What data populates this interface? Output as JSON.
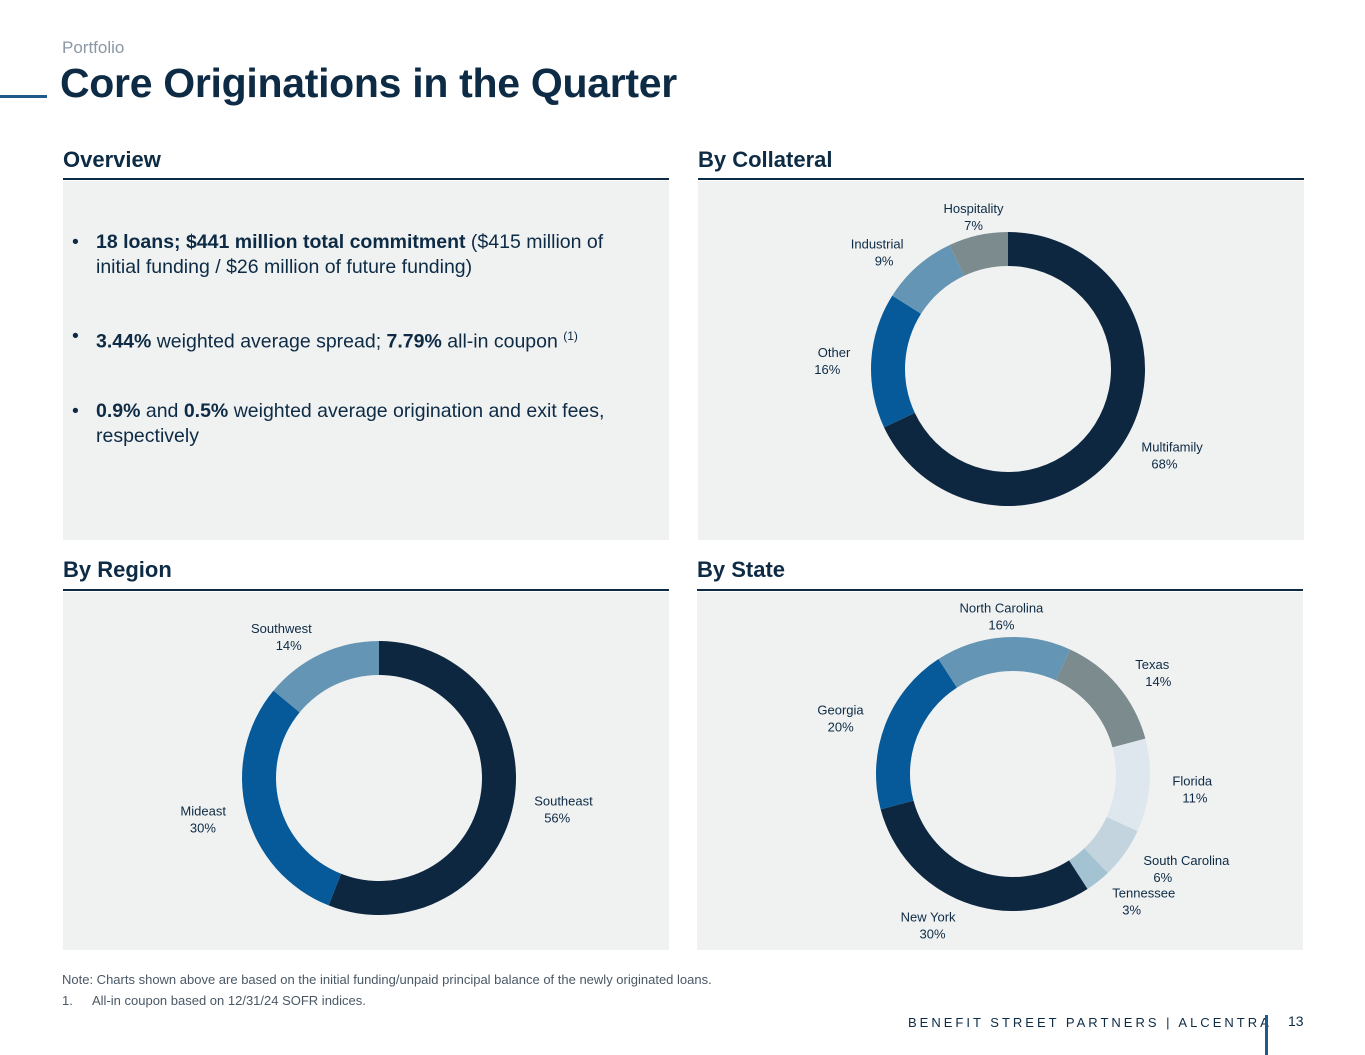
{
  "header": {
    "eyebrow": "Portfolio",
    "title": "Core Originations in the Quarter"
  },
  "overview": {
    "heading": "Overview",
    "bullets": [
      {
        "parts": [
          {
            "t": "18 loans; $441 million total commitment",
            "b": true
          },
          {
            "t": " ($415 million of initial funding / $26 million of future funding)",
            "b": false
          }
        ]
      },
      {
        "parts": [
          {
            "t": "3.44%",
            "b": true
          },
          {
            "t": " weighted average spread; ",
            "b": false
          },
          {
            "t": "7.79%",
            "b": true
          },
          {
            "t": " all-in coupon ",
            "b": false
          },
          {
            "t": "(1)",
            "sup": true
          }
        ]
      },
      {
        "parts": [
          {
            "t": "0.9%",
            "b": true
          },
          {
            "t": " and ",
            "b": false
          },
          {
            "t": "0.5%",
            "b": true
          },
          {
            "t": " weighted average origination and exit fees, respectively",
            "b": false
          }
        ]
      }
    ]
  },
  "chart_data": [
    {
      "type": "pie",
      "title": "By Collateral",
      "series": [
        {
          "name": "Multifamily",
          "value": 68,
          "label": "68%",
          "color": "#0d2740"
        },
        {
          "name": "Other",
          "value": 16,
          "label": "16%",
          "color": "#065a99"
        },
        {
          "name": "Industrial",
          "value": 9,
          "label": "9%",
          "color": "#6495b4"
        },
        {
          "name": "Hospitality",
          "value": 7,
          "label": "7%",
          "color": "#7b8b8e"
        }
      ]
    },
    {
      "type": "pie",
      "title": "By Region",
      "series": [
        {
          "name": "Southeast",
          "value": 56,
          "label": "56%",
          "color": "#0d2740"
        },
        {
          "name": "Mideast",
          "value": 30,
          "label": "30%",
          "color": "#065a99"
        },
        {
          "name": "Southwest",
          "value": 14,
          "label": "14%",
          "color": "#6495b4"
        }
      ]
    },
    {
      "type": "pie",
      "title": "By State",
      "series": [
        {
          "name": "Texas",
          "value": 14,
          "label": "14%",
          "color": "#7b8b8e"
        },
        {
          "name": "Florida",
          "value": 11,
          "label": "11%",
          "color": "#dfe7ee"
        },
        {
          "name": "South Carolina",
          "value": 6,
          "label": "6%",
          "color": "#c3d4df"
        },
        {
          "name": "Tennessee",
          "value": 3,
          "label": "3%",
          "color": "#a4c3d2"
        },
        {
          "name": "New York",
          "value": 30,
          "label": "30%",
          "color": "#0d2740"
        },
        {
          "name": "Georgia",
          "value": 20,
          "label": "20%",
          "color": "#065a99"
        },
        {
          "name": "North Carolina",
          "value": 16,
          "label": "16%",
          "color": "#6495b4"
        }
      ]
    }
  ],
  "footer": {
    "note": "Note: Charts shown above are based on the initial funding/unpaid principal balance of the newly originated loans.",
    "footnote_num": "1.",
    "footnote_text": "All-in coupon based on 12/31/24 SOFR indices.",
    "brand": "BENEFIT STREET PARTNERS | ALCENTRA",
    "page": "13"
  }
}
